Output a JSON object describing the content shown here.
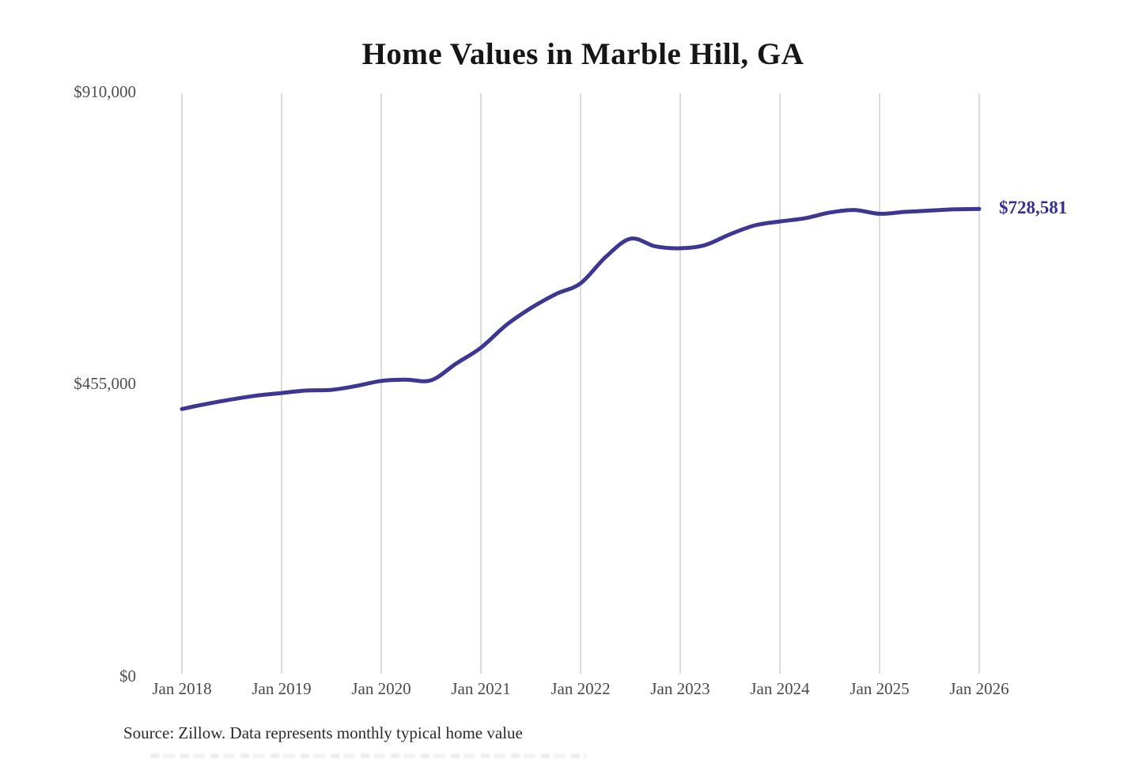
{
  "page": {
    "title": "Home Values in Marble Hill, GA",
    "source_note": "Source: Zillow. Data represents monthly typical home value"
  },
  "chart_data": {
    "type": "line",
    "title": "Home Values in Marble Hill, GA",
    "series_name": "Monthly typical home value",
    "x": [
      "2018-01",
      "2018-04",
      "2018-07",
      "2018-10",
      "2019-01",
      "2019-04",
      "2019-07",
      "2019-10",
      "2020-01",
      "2020-04",
      "2020-07",
      "2020-10",
      "2021-01",
      "2021-04",
      "2021-07",
      "2021-10",
      "2022-01",
      "2022-04",
      "2022-07",
      "2022-10",
      "2023-01",
      "2023-04",
      "2023-07",
      "2023-10",
      "2024-01",
      "2024-04",
      "2024-07",
      "2024-10",
      "2025-01",
      "2025-04",
      "2025-07",
      "2025-10",
      "2026-01"
    ],
    "values": [
      415000,
      423000,
      430000,
      436000,
      440000,
      444000,
      445000,
      451000,
      459000,
      461000,
      460000,
      486000,
      511000,
      546000,
      573000,
      595000,
      612000,
      653000,
      682000,
      670000,
      667000,
      672000,
      689000,
      703000,
      709000,
      714000,
      723000,
      727000,
      721000,
      724000,
      726000,
      728000,
      728581
    ],
    "end_value": 728581,
    "end_label": "$728,581",
    "xticks": [
      "Jan 2018",
      "Jan 2019",
      "Jan 2020",
      "Jan 2021",
      "Jan 2022",
      "Jan 2023",
      "Jan 2024",
      "Jan 2025",
      "Jan 2026"
    ],
    "yticks": [
      "$0",
      "$455,000",
      "$910,000"
    ],
    "ylim": [
      0,
      910000
    ],
    "x_range_months": 96,
    "grid": "vertical-only",
    "legend": "none",
    "line_color": "#3d3693",
    "end_label_color": "#33308f",
    "grid_color": "#cccccc",
    "source": "Source: Zillow. Data represents monthly typical home value"
  }
}
